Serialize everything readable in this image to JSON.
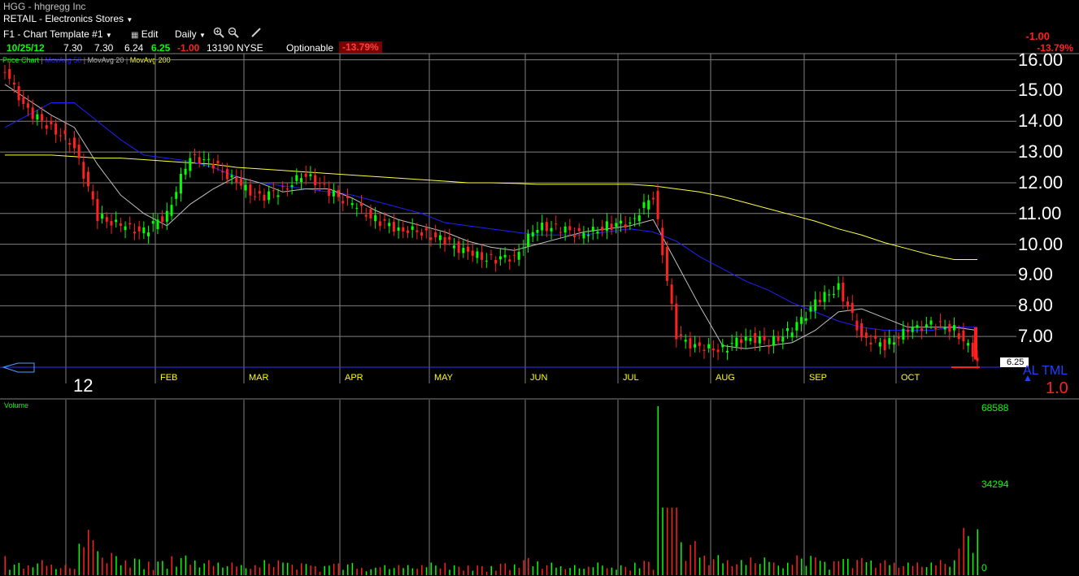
{
  "header": {
    "symbol_title": "HGG - hhgregg Inc",
    "sector": "RETAIL - Electronics Stores",
    "template": "F1 - Chart Template #1",
    "edit_label": "Edit",
    "period": "Daily",
    "zoom_in_icon": "zoom-in-icon",
    "zoom_out_icon": "zoom-out-icon",
    "draw_icon": "pencil-icon",
    "top_right_change": "-1.00",
    "top_right_pct": "-13.79%"
  },
  "quote": {
    "date": "10/25/12",
    "open": "7.30",
    "high": "7.30",
    "low": "6.24",
    "close": "6.25",
    "change": "-1.00",
    "volume": "13190",
    "exchange": "NYSE",
    "optionable": "Optionable",
    "change_pct": "-13.79%"
  },
  "price_panel": {
    "legend": {
      "price_chart": "Price Chart",
      "ma50": "MovAvg 50",
      "ma20": "MovAvg 20",
      "ma200": "MovAvg 200"
    },
    "year_label": "12",
    "last_price_tag": "6.25",
    "alert_label": "AL TML",
    "right_value": "1.0"
  },
  "volume_panel": {
    "label": "Volume",
    "scale": [
      "68588",
      "34294",
      "0"
    ]
  },
  "colors": {
    "up": "#00ff00",
    "down": "#ff2020",
    "ma50": "#2020ff",
    "ma20": "#c0c0c0",
    "ma200": "#ffff40",
    "grid": "#808080",
    "axis_text": "#ffff00"
  },
  "chart_data": {
    "type": "candlestick",
    "title": "HGG - hhgregg Inc",
    "y_ticks": [
      "16.00",
      "15.00",
      "14.00",
      "13.00",
      "12.00",
      "11.00",
      "10.00",
      "9.00",
      "8.00",
      "7.00"
    ],
    "ylim": [
      6.0,
      16.2
    ],
    "x_ticks": [
      "FEB",
      "MAR",
      "APR",
      "MAY",
      "JUN",
      "JUL",
      "AUG",
      "SEP",
      "OCT"
    ],
    "series": {
      "price_weekly_closes": [
        15.6,
        14.3,
        13.8,
        13.2,
        10.9,
        10.6,
        10.4,
        11.0,
        12.9,
        12.6,
        12.0,
        11.5,
        11.8,
        12.3,
        11.7,
        11.3,
        10.8,
        10.5,
        10.4,
        10.1,
        9.7,
        9.5,
        9.6,
        10.6,
        10.5,
        10.3,
        10.6,
        10.7,
        11.6,
        7.0,
        6.6,
        6.6,
        7.0,
        6.8,
        7.2,
        8.1,
        8.6,
        7.0,
        6.7,
        7.2,
        7.4,
        7.25,
        6.25
      ],
      "ma50": [
        13.8,
        14.2,
        14.6,
        14.6,
        14.0,
        13.4,
        12.9,
        12.8,
        12.7,
        12.5,
        12.2,
        12.0,
        11.9,
        11.8,
        11.7,
        11.6,
        11.4,
        11.2,
        11.0,
        10.7,
        10.6,
        10.5,
        10.4,
        10.3,
        10.3,
        10.3,
        10.4,
        10.5,
        10.4,
        10.1,
        9.6,
        9.2,
        8.8,
        8.5,
        8.1,
        7.8,
        7.5,
        7.3,
        7.2,
        7.2,
        7.2,
        7.3,
        7.3
      ],
      "ma20": [
        15.2,
        14.7,
        14.2,
        13.8,
        12.6,
        11.6,
        11.0,
        10.6,
        11.3,
        11.8,
        12.2,
        12.0,
        11.7,
        11.8,
        11.8,
        11.5,
        11.1,
        10.8,
        10.6,
        10.4,
        10.1,
        9.9,
        9.8,
        10.0,
        10.2,
        10.4,
        10.5,
        10.6,
        10.8,
        9.4,
        8.0,
        6.7,
        6.6,
        6.7,
        6.8,
        7.2,
        7.8,
        7.9,
        7.6,
        7.3,
        7.3,
        7.3,
        7.2
      ],
      "ma200": [
        12.9,
        12.9,
        12.9,
        12.85,
        12.8,
        12.8,
        12.75,
        12.7,
        12.65,
        12.6,
        12.5,
        12.45,
        12.4,
        12.35,
        12.3,
        12.25,
        12.2,
        12.15,
        12.1,
        12.05,
        12.0,
        12.0,
        11.98,
        11.95,
        11.95,
        11.95,
        11.95,
        11.95,
        11.9,
        11.8,
        11.7,
        11.55,
        11.35,
        11.15,
        10.95,
        10.75,
        10.5,
        10.3,
        10.05,
        9.85,
        9.65,
        9.5,
        9.5
      ],
      "volume_bars": [
        9,
        5,
        6,
        4,
        18,
        9,
        7,
        6,
        8,
        6,
        5,
        4,
        6,
        5,
        4,
        5,
        3,
        4,
        4,
        5,
        4,
        4,
        5,
        7,
        5,
        4,
        5,
        4,
        6,
        100,
        14,
        8,
        6,
        7,
        5,
        8,
        6,
        7,
        6,
        5,
        5,
        6,
        19
      ]
    }
  }
}
